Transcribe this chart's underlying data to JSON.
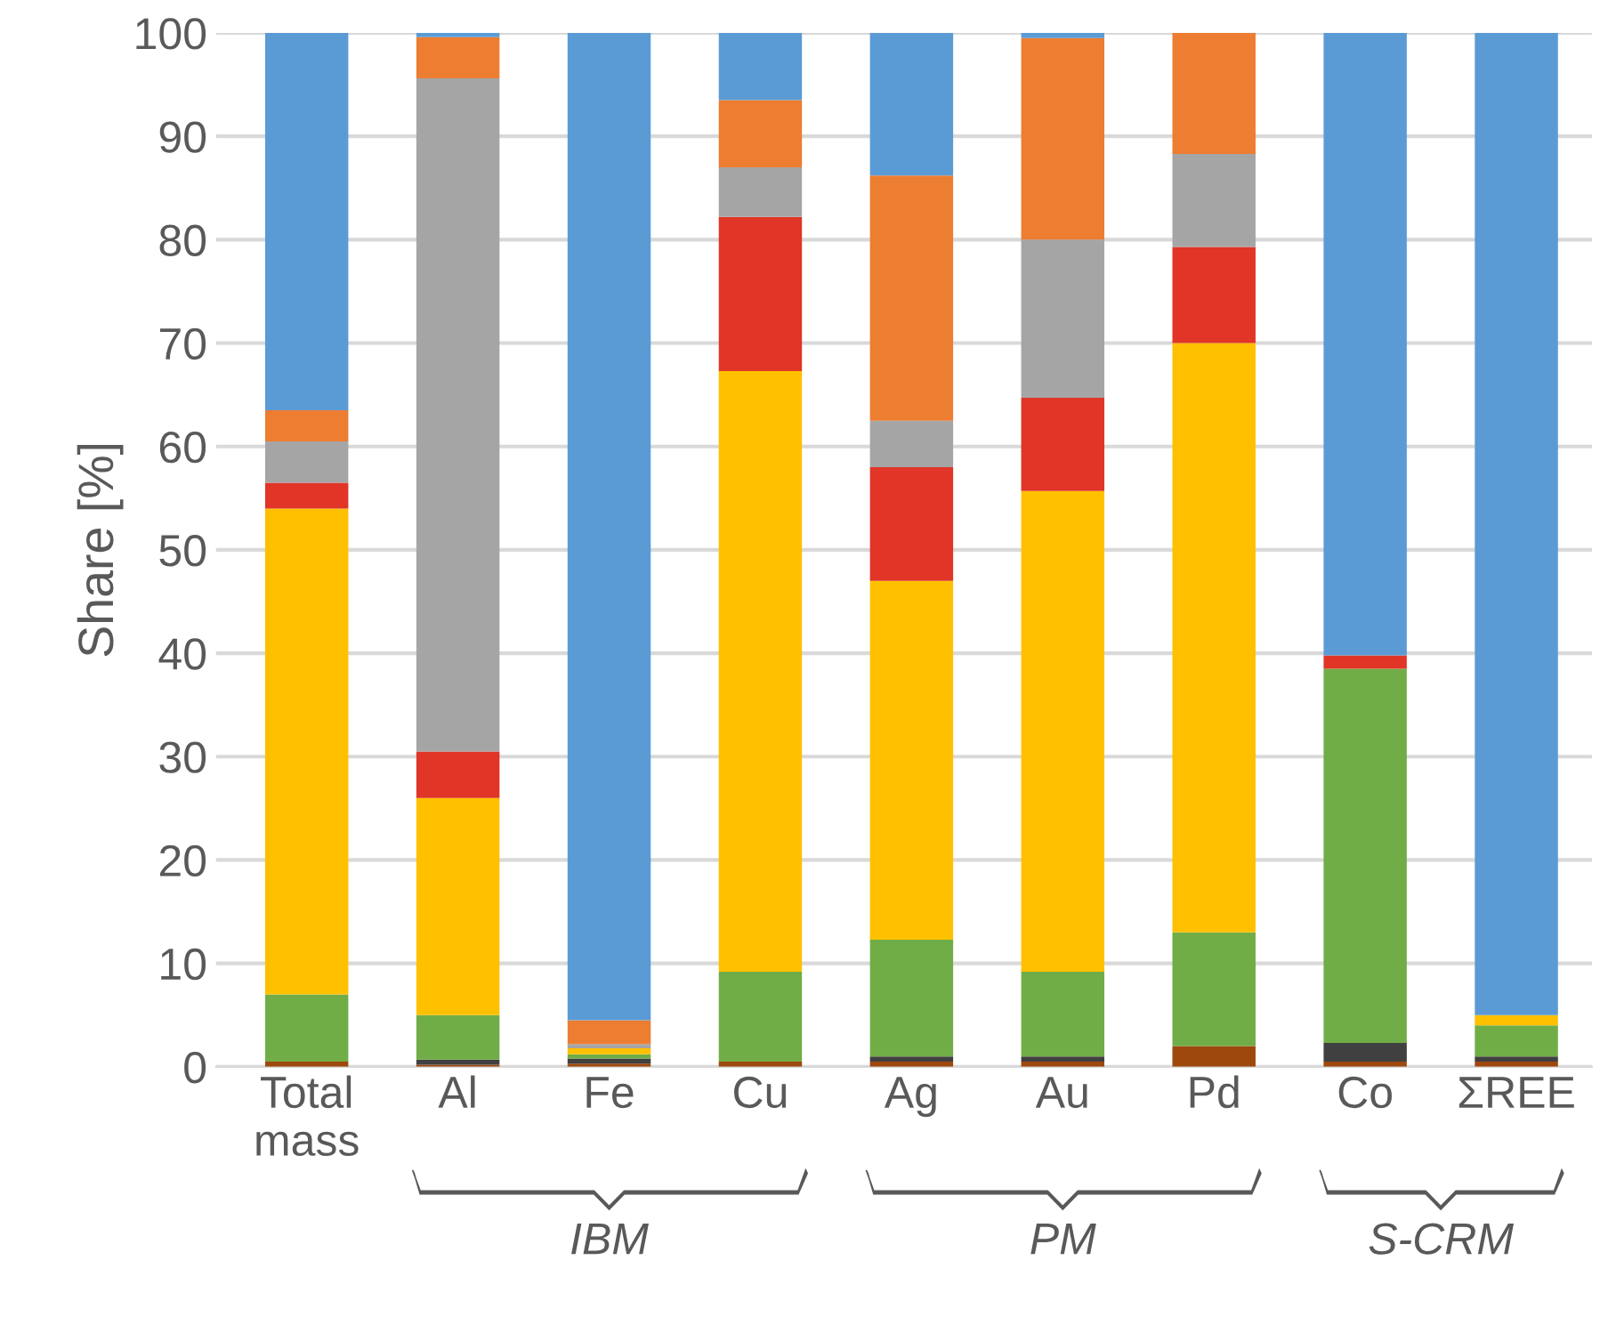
{
  "chart_data": {
    "type": "bar",
    "stacked": true,
    "ylabel": "Share [%]",
    "categories": [
      "Total\nmass",
      "Al",
      "Fe",
      "Cu",
      "Ag",
      "Au",
      "Pd",
      "Co",
      "ΣREE"
    ],
    "series": [
      {
        "color": "#9e480e",
        "values": [
          0.5,
          0.2,
          0.3,
          0.5,
          0.5,
          0.5,
          2,
          0.5,
          0.5
        ]
      },
      {
        "color": "#404040",
        "values": [
          0,
          0.5,
          0.5,
          0,
          0.5,
          0.5,
          0,
          1.8,
          0.5
        ]
      },
      {
        "color": "#70ad47",
        "values": [
          6.5,
          4.3,
          0.4,
          8.7,
          11.3,
          8.2,
          11,
          36.2,
          3
        ]
      },
      {
        "color": "#ffc000",
        "values": [
          47,
          21,
          0.6,
          58.1,
          34.7,
          46.5,
          57,
          0,
          1
        ]
      },
      {
        "color": "#e03527",
        "values": [
          2.5,
          4.5,
          0,
          14.9,
          11,
          9,
          9.3,
          1.3,
          0
        ]
      },
      {
        "color": "#a5a5a5",
        "values": [
          4,
          65.1,
          0.4,
          4.8,
          4.5,
          15.3,
          9,
          0,
          0
        ]
      },
      {
        "color": "#ed7d31",
        "values": [
          3,
          4,
          2.3,
          6.5,
          23.7,
          19.5,
          11.7,
          0,
          0
        ]
      },
      {
        "color": "#5b9bd5",
        "values": [
          36.5,
          0.4,
          95.5,
          6.5,
          13.8,
          0.5,
          0,
          60.2,
          95
        ]
      }
    ],
    "ylim": [
      0,
      100
    ],
    "yticks": [
      0,
      10,
      20,
      30,
      40,
      50,
      60,
      70,
      80,
      90,
      100
    ],
    "grid": "y",
    "legend": false,
    "annotations": [
      "IBM",
      "PM",
      "S-CRM"
    ]
  }
}
